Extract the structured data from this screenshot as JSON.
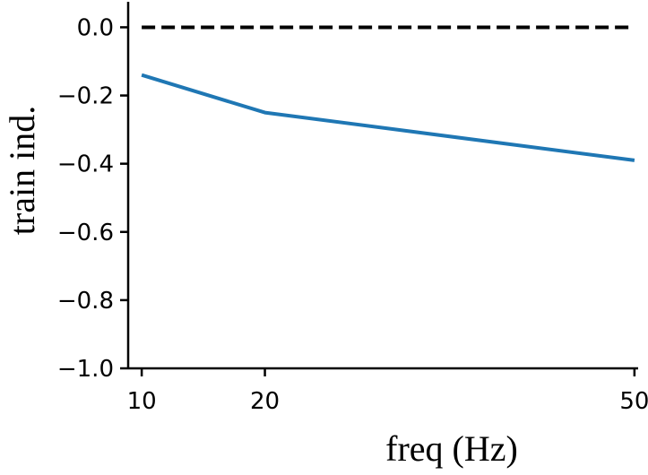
{
  "chart_data": {
    "type": "line",
    "title": "",
    "xlabel": "freq (Hz)",
    "ylabel": "train ind.",
    "x": [
      10,
      20,
      50
    ],
    "xlim": [
      8.9,
      50.3
    ],
    "ylim": [
      -1.0,
      0.08
    ],
    "x_ticks": [
      10,
      20,
      50
    ],
    "x_tick_labels": [
      "10",
      "20",
      "50"
    ],
    "y_ticks": [
      0.0,
      -0.2,
      -0.4,
      -0.6,
      -0.8,
      -1.0
    ],
    "y_tick_labels": [
      "0.0",
      "−0.2",
      "−0.4",
      "−0.6",
      "−0.8",
      "−1.0"
    ],
    "grid": false,
    "legend": "none",
    "series": [
      {
        "values": [
          -0.14,
          -0.25,
          -0.39
        ],
        "color": "#1f77b4",
        "style": "solid"
      }
    ],
    "reference_line": {
      "y": 0.0,
      "x_range": [
        10,
        50
      ],
      "color": "#000000",
      "style": "dashed"
    }
  }
}
